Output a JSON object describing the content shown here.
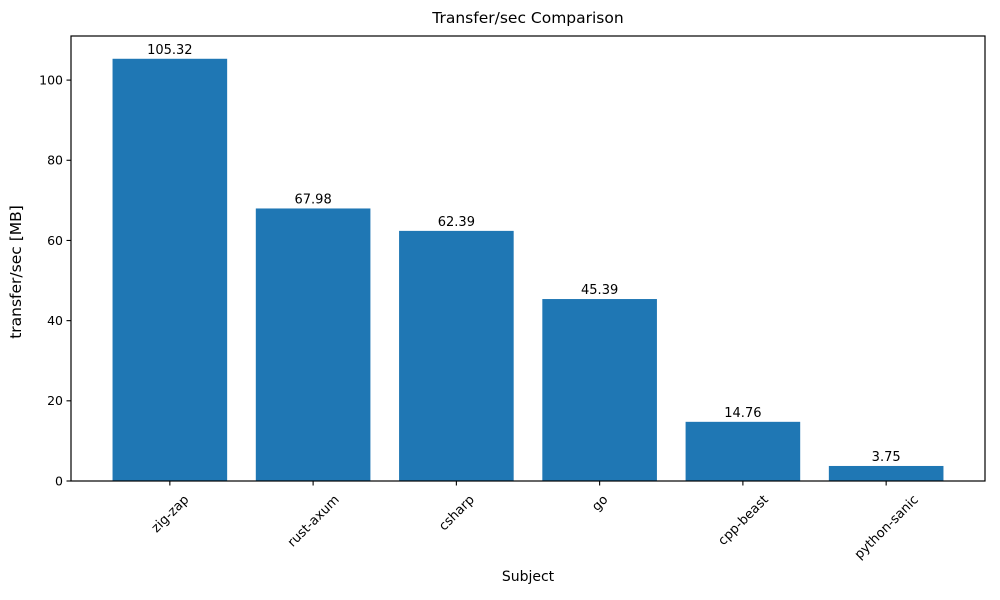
{
  "figure": {
    "background": "#ffffff"
  },
  "chart_data": {
    "type": "bar",
    "title": "Transfer/sec Comparison",
    "xlabel": "Subject",
    "ylabel": "transfer/sec [MB]",
    "categories": [
      "zig-zap",
      "rust-axum",
      "csharp",
      "go",
      "cpp-beast",
      "python-sanic"
    ],
    "values": [
      105.32,
      67.98,
      62.39,
      45.39,
      14.76,
      3.75
    ],
    "value_labels": [
      "105.32",
      "67.98",
      "62.39",
      "45.39",
      "14.76",
      "3.75"
    ],
    "yticks": [
      0,
      20,
      40,
      60,
      80,
      100
    ],
    "ylim": [
      0,
      111
    ],
    "xtick_rotation_deg": 45,
    "grid": false,
    "legend": null,
    "bar_color": "#1f77b4",
    "axis_color": "#000000",
    "text_color": "#000000"
  }
}
